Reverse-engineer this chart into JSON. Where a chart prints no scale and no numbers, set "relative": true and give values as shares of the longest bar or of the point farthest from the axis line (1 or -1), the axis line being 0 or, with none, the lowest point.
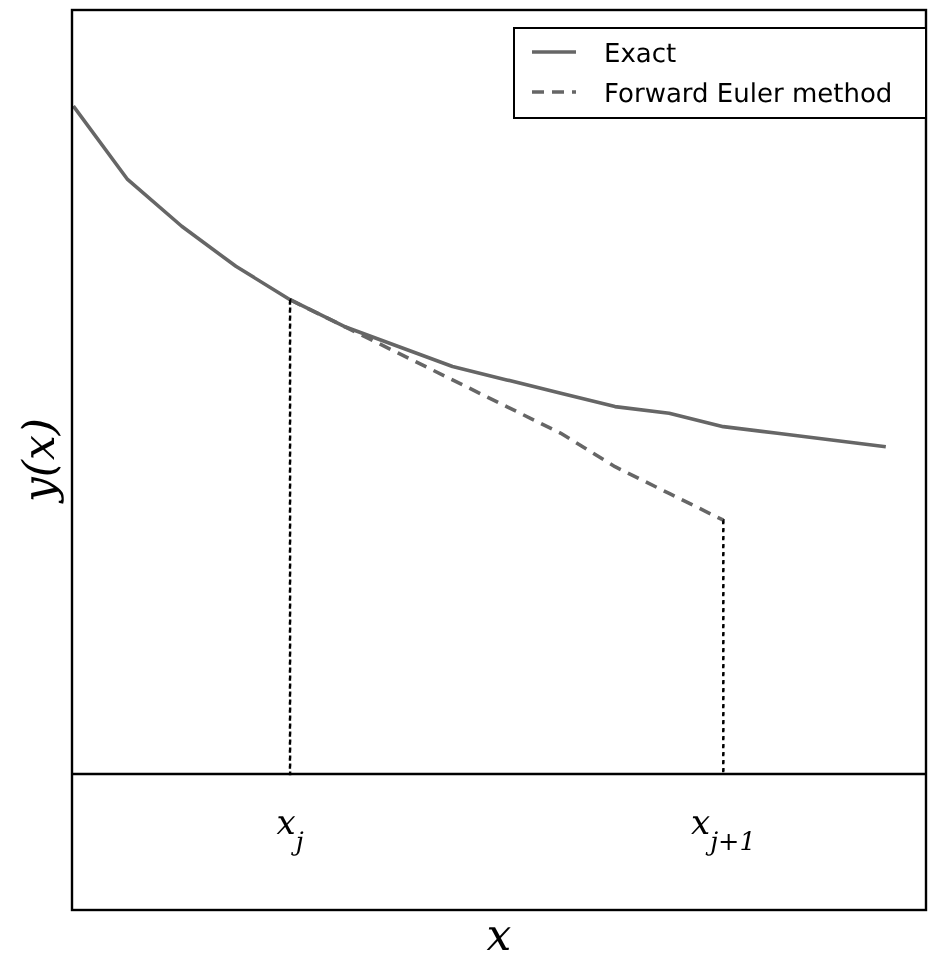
{
  "chart_data": {
    "type": "line",
    "relative": true,
    "xlabel": "x",
    "ylabel": "y(x)",
    "categories": [
      null,
      null,
      null,
      null,
      "x$_{j}$",
      null,
      null,
      null,
      null,
      null,
      null,
      null,
      "x$_{j+1}$",
      null,
      null,
      null
    ],
    "legend": "top right",
    "grid": false,
    "series": [
      {
        "name": "Exact",
        "color": "#666666",
        "line_style": "solid",
        "values": [
          1,
          0.89,
          0.82,
          0.76,
          0.71,
          0.67,
          0.64,
          0.61,
          0.59,
          0.57,
          0.55,
          0.54,
          0.52,
          0.51,
          0.5,
          0.49
        ]
      },
      {
        "name": "Forward Euler method",
        "color": "#666666",
        "line_style": "dashed",
        "values": [
          null,
          null,
          null,
          null,
          0.71,
          0.67,
          0.63,
          0.59,
          0.55,
          0.51,
          0.46,
          0.42,
          0.38,
          null,
          null,
          null
        ]
      },
      {
        "type": "bar",
        "color": "#000000",
        "line_style": "dotted",
        "values": [
          null,
          null,
          null,
          null,
          0.71,
          null,
          null,
          null,
          null,
          null,
          null,
          null,
          0.38,
          null,
          null,
          null
        ]
      }
    ]
  }
}
